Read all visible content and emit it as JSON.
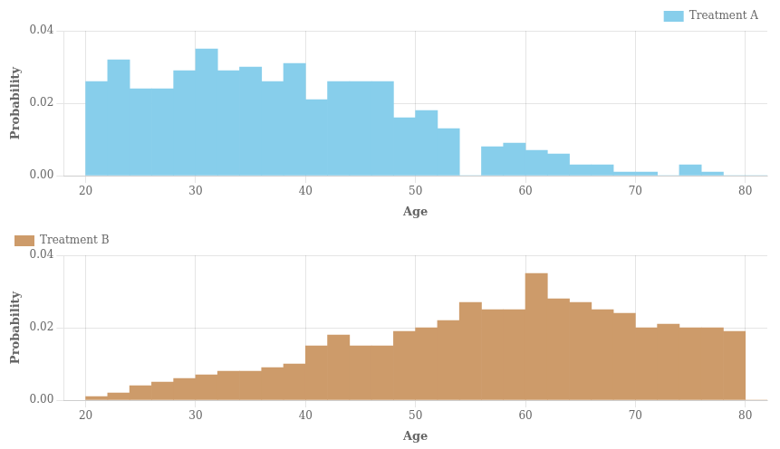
{
  "chart_data": [
    {
      "type": "histogram",
      "bins": [
        20,
        22,
        24,
        26,
        28,
        30,
        32,
        34,
        36,
        38,
        40,
        42,
        44,
        46,
        48,
        50,
        52,
        54,
        56,
        58,
        60,
        62,
        64,
        66,
        68,
        70,
        72,
        74,
        76,
        78,
        80,
        82
      ],
      "series": [
        {
          "name": "Treatment A",
          "color": "#87CEEB",
          "values": [
            0.026,
            0.032,
            0.024,
            0.024,
            0.029,
            0.035,
            0.029,
            0.03,
            0.026,
            0.031,
            0.021,
            0.026,
            0.026,
            0.026,
            0.016,
            0.018,
            0.013,
            0.0,
            0.008,
            0.009,
            0.007,
            0.006,
            0.003,
            0.003,
            0.001,
            0.001,
            0.0,
            0.003,
            0.001,
            0.0,
            0.0
          ]
        }
      ],
      "xlabel": "Age",
      "ylabel": "Probability",
      "xlim": [
        18,
        82
      ],
      "xticks": [
        20,
        30,
        40,
        50,
        60,
        70,
        80
      ],
      "ylim": [
        0,
        0.04
      ],
      "yticks": [
        {
          "value": 0,
          "label": "0.00"
        },
        0.02,
        0.04
      ],
      "grid": true,
      "legend": "upper right"
    },
    {
      "type": "histogram",
      "bins": [
        20,
        22,
        24,
        26,
        28,
        30,
        32,
        34,
        36,
        38,
        40,
        42,
        44,
        46,
        48,
        50,
        52,
        54,
        56,
        58,
        60,
        62,
        64,
        66,
        68,
        70,
        72,
        74,
        76,
        78,
        80,
        82
      ],
      "series": [
        {
          "name": "Treatment B",
          "color": "#CD9B6A",
          "values": [
            0.001,
            0.002,
            0.004,
            0.005,
            0.006,
            0.007,
            0.008,
            0.008,
            0.009,
            0.01,
            0.015,
            0.018,
            0.015,
            0.015,
            0.019,
            0.02,
            0.022,
            0.027,
            0.025,
            0.025,
            0.035,
            0.028,
            0.027,
            0.025,
            0.024,
            0.02,
            0.021,
            0.02,
            0.02,
            0.019,
            0.0
          ]
        }
      ],
      "xlabel": "Age",
      "ylabel": "Probability",
      "xlim": [
        18,
        82
      ],
      "xticks": [
        20,
        30,
        40,
        50,
        60,
        70,
        80
      ],
      "ylim": [
        0,
        0.04
      ],
      "yticks": [
        {
          "value": 0,
          "label": "0.00"
        },
        0.02,
        0.04
      ],
      "grid": true,
      "legend": "upper left"
    }
  ]
}
